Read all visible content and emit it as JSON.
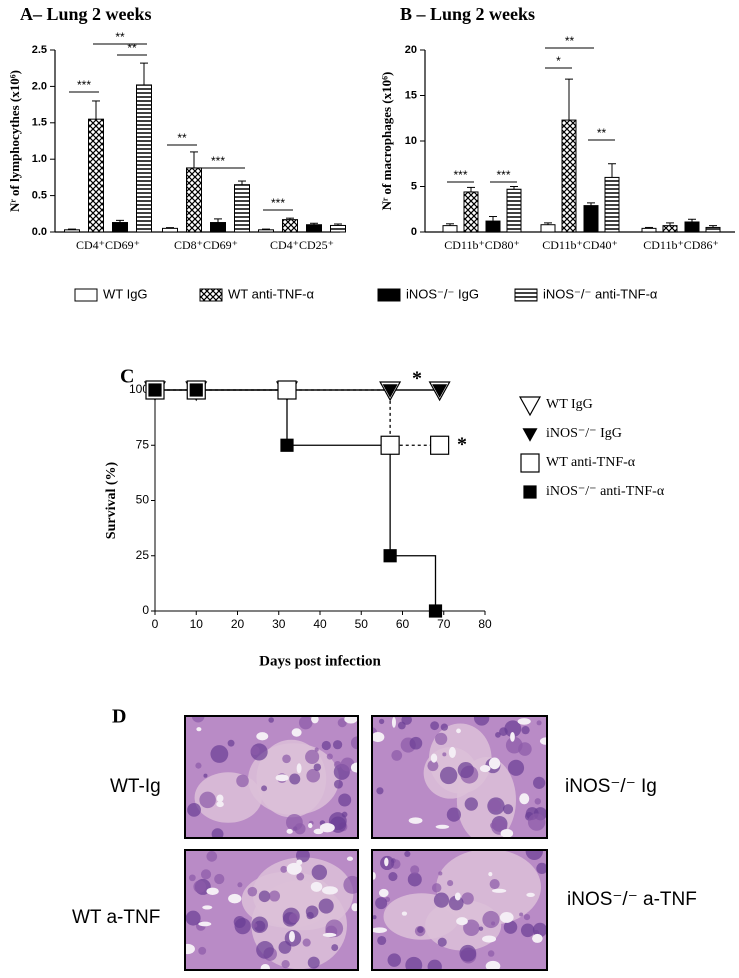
{
  "chart_data": [
    {
      "type": "bar",
      "title": "A– Lung  2 weeks",
      "y_label": "Nʳ of lymphocythes (x10⁶)",
      "categories": [
        "CD4⁺CD69⁺",
        "CD8⁺CD69⁺",
        "CD4⁺CD25⁺"
      ],
      "series": [
        {
          "name": "WT IgG",
          "color": "#ffffff",
          "pattern": "solid",
          "values": [
            0.03,
            0.05,
            0.03
          ],
          "errors": [
            0.01,
            0.01,
            0.01
          ]
        },
        {
          "name": "WT anti-TNF-α",
          "color": "#000000",
          "pattern": "crosshatch",
          "values": [
            1.55,
            0.88,
            0.17
          ],
          "errors": [
            0.25,
            0.22,
            0.02
          ]
        },
        {
          "name": "iNOS⁻/⁻ IgG",
          "color": "#000000",
          "pattern": "solid",
          "values": [
            0.13,
            0.13,
            0.1
          ],
          "errors": [
            0.03,
            0.05,
            0.02
          ]
        },
        {
          "name": "iNOS⁻/⁻ anti-TNF-α",
          "color": "#000000",
          "pattern": "hstripes",
          "values": [
            2.02,
            0.65,
            0.09
          ],
          "errors": [
            0.3,
            0.05,
            0.02
          ]
        }
      ],
      "ylim": [
        0,
        2.5
      ],
      "yticks": [
        {
          "value": 0,
          "label": "0.0"
        },
        0.5,
        {
          "value": 1,
          "label": "1.0"
        },
        1.5,
        {
          "value": 2,
          "label": "2.0"
        },
        2.5
      ],
      "annotations": [
        "***",
        "**",
        "**",
        "**",
        "***",
        "***"
      ],
      "legend": "bottom"
    },
    {
      "type": "bar",
      "title": "B – Lung  2 weeks",
      "y_label": "Nʳ of macrophages (x10⁶)",
      "categories": [
        "CD11b⁺CD80⁺",
        "CD11b⁺CD40⁺",
        "CD11b⁺CD86⁺"
      ],
      "series": [
        {
          "color": "#ffffff",
          "pattern": "solid",
          "values": [
            0.7,
            0.8,
            0.4
          ],
          "errors": [
            0.2,
            0.2,
            0.1
          ]
        },
        {
          "color": "#000000",
          "pattern": "crosshatch",
          "values": [
            4.4,
            12.3,
            0.7
          ],
          "errors": [
            0.5,
            4.5,
            0.3
          ]
        },
        {
          "color": "#000000",
          "pattern": "solid",
          "values": [
            1.2,
            2.9,
            1.1
          ],
          "errors": [
            0.5,
            0.3,
            0.3
          ]
        },
        {
          "color": "#000000",
          "pattern": "hstripes",
          "values": [
            4.7,
            6.0,
            0.5
          ],
          "errors": [
            0.3,
            1.5,
            0.2
          ]
        }
      ],
      "ylim": [
        0,
        20
      ],
      "yticks": [
        0,
        5,
        10,
        15,
        20
      ],
      "annotations": [
        "***",
        "***",
        "*",
        "**",
        "**"
      ]
    },
    {
      "type": "line",
      "title": "C",
      "x_label": "Days post infection",
      "y_label": "Survival (%)",
      "series": [
        {
          "name": "WT IgG",
          "color": "#000000",
          "marker": "open-triangle",
          "dash": false,
          "x": [
            0,
            10,
            32,
            57,
            69
          ],
          "values": [
            100,
            100,
            100,
            100,
            100
          ]
        },
        {
          "name": "iNOS⁻/⁻ IgG",
          "color": "#000000",
          "marker": "filled-triangle",
          "dash": false,
          "x": [
            0,
            10,
            32,
            57,
            69
          ],
          "values": [
            100,
            100,
            100,
            100,
            100
          ]
        },
        {
          "name": "WT anti-TNF-α",
          "color": "#000000",
          "marker": "open-square",
          "dash": true,
          "x": [
            0,
            10,
            32,
            57,
            69
          ],
          "values": [
            100,
            100,
            100,
            75,
            75
          ]
        },
        {
          "name": "iNOS⁻/⁻ anti-TNF-α",
          "color": "#000000",
          "marker": "filled-square",
          "dash": false,
          "x": [
            0,
            10,
            32,
            57,
            68
          ],
          "values": [
            100,
            100,
            75,
            25,
            0
          ]
        }
      ],
      "xlim": [
        0,
        80
      ],
      "xticks": [
        0,
        10,
        20,
        30,
        40,
        50,
        60,
        70,
        80
      ],
      "ylim": [
        0,
        100
      ],
      "yticks": [
        0,
        25,
        50,
        75,
        100
      ],
      "annotations": [
        "*",
        "*"
      ],
      "legend": "right"
    }
  ],
  "panel_d": {
    "title": "D",
    "labels": [
      "WT-Ig",
      "iNOS⁻/⁻ Ig",
      "WT a-TNF",
      "iNOS⁻/⁻ a-TNF"
    ]
  }
}
